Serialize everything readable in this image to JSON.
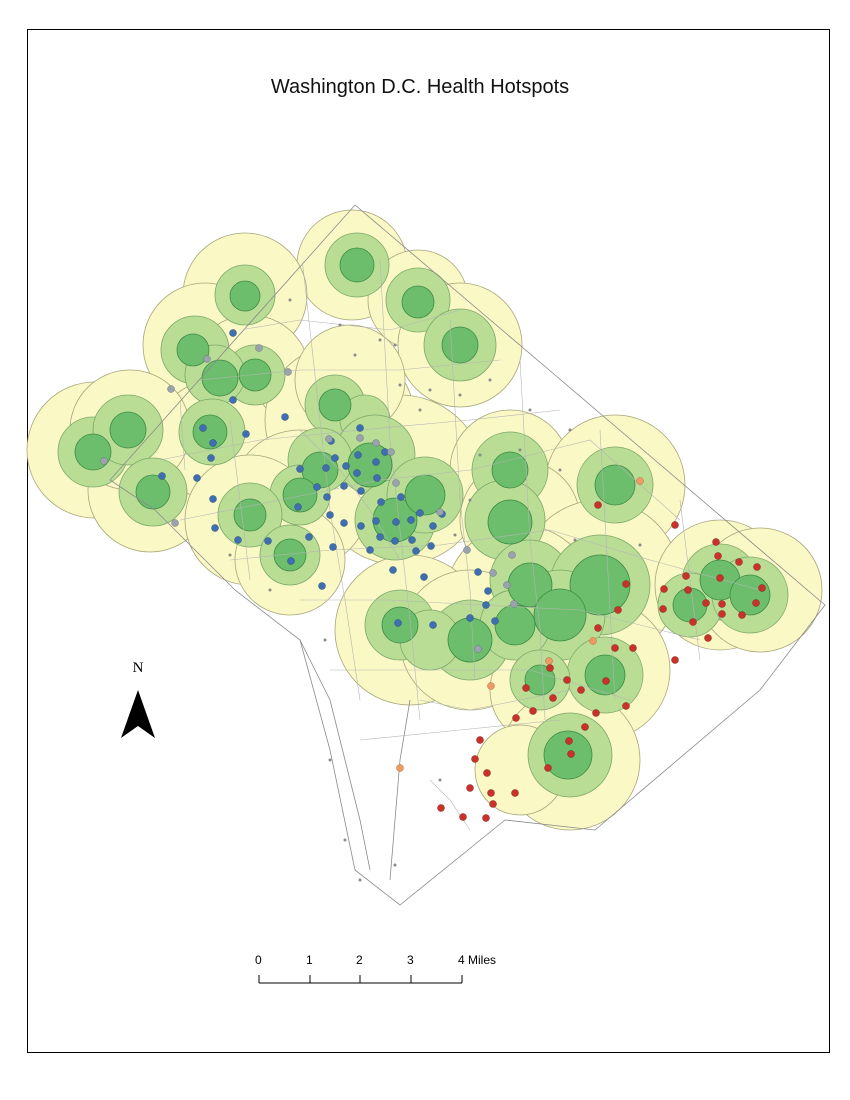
{
  "map": {
    "title": "Washington D.C. Health Hotspots",
    "north_label": "N",
    "scale_labels": [
      "0",
      "1",
      "2",
      "3",
      "4 Miles"
    ],
    "colors": {
      "buffer_outer": "#faf8c4",
      "buffer_mid": "#b9dd94",
      "buffer_inner": "#6cbe6c",
      "boundary": "#8a8a8a",
      "point_blue": "#3f6fb0",
      "point_gray": "#9aa2ad",
      "point_red": "#c8322a",
      "point_orange": "#ee9966"
    }
  }
}
